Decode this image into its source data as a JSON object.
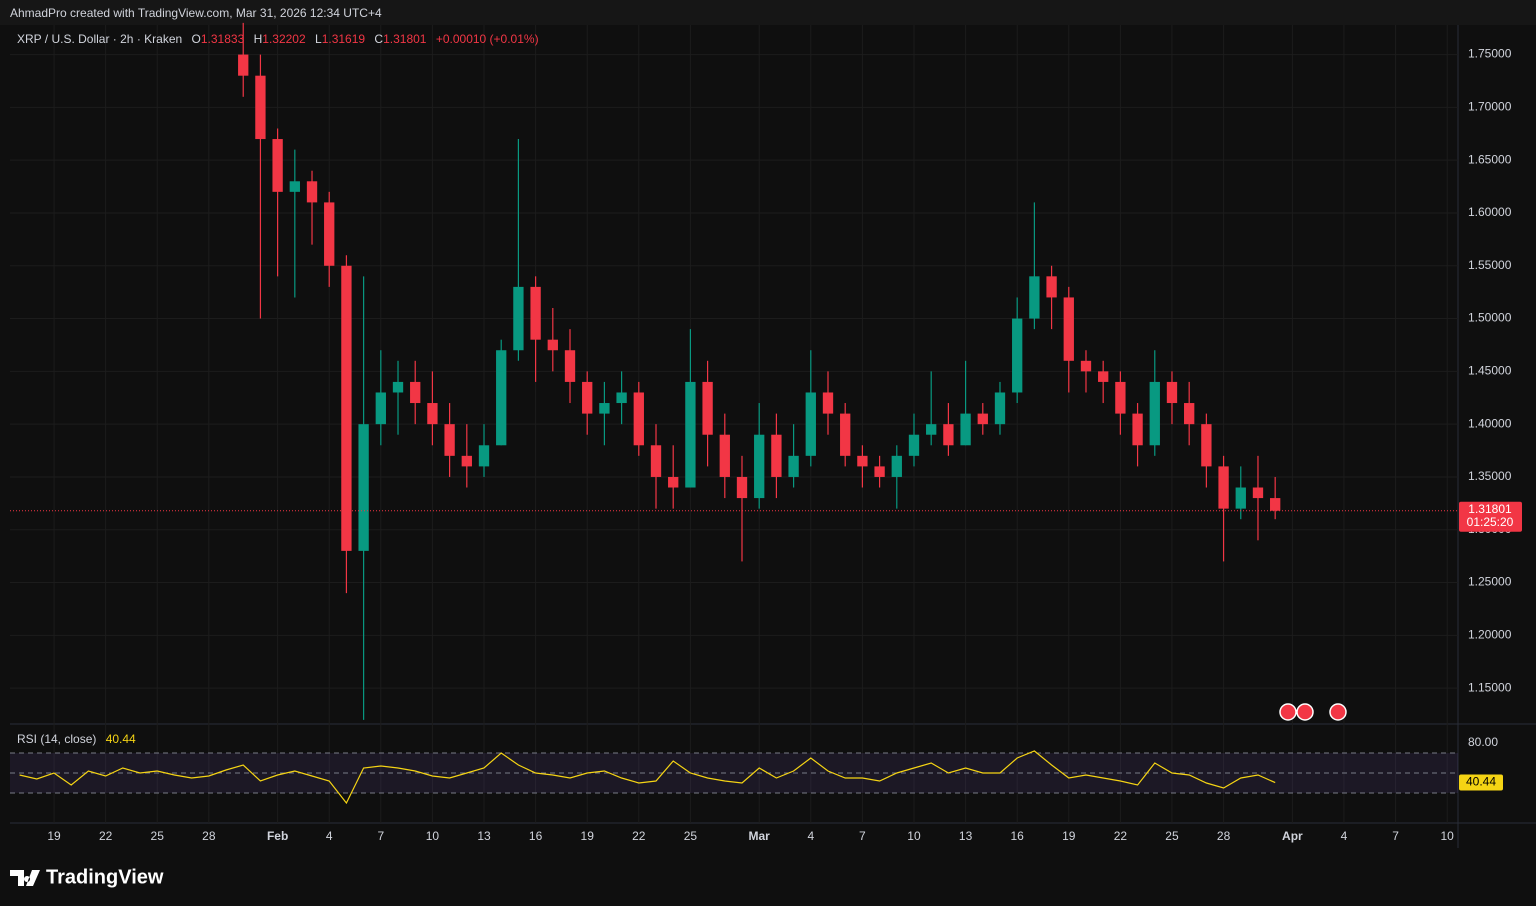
{
  "header": "AhmadPro created with TradingView.com, Mar 31, 2026 12:34 UTC+4",
  "footer": "TradingView",
  "chart_data": [
    {
      "type": "candlestick",
      "title": "XRP / U.S. Dollar · 2h · Kraken",
      "legend_labels": {
        "open": "O",
        "high": "H",
        "low": "L",
        "close": "C"
      },
      "last_bar": {
        "open": 1.31833,
        "high": 1.32202,
        "low": 1.31619,
        "close": 1.31801,
        "change": "+0.00010 (+0.01%)",
        "countdown": "01:25:20"
      },
      "up_color": "#089981",
      "down_color": "#f23645",
      "x": [
        30,
        31,
        32,
        33,
        34,
        35,
        36,
        37,
        38,
        39,
        40,
        41,
        42,
        43,
        44,
        45,
        46,
        47,
        48,
        49,
        50,
        51,
        52,
        53,
        54,
        55,
        56,
        57,
        58,
        59,
        60,
        61,
        62,
        63,
        64,
        65,
        66,
        67,
        68,
        69,
        70,
        71,
        72,
        73,
        74,
        75,
        76,
        77,
        78,
        79,
        80,
        81,
        82,
        83,
        84,
        85,
        86,
        87,
        88,
        89,
        90
      ],
      "open": [
        1.75,
        1.73,
        1.67,
        1.62,
        1.63,
        1.61,
        1.55,
        1.28,
        1.4,
        1.43,
        1.44,
        1.42,
        1.4,
        1.37,
        1.36,
        1.38,
        1.47,
        1.53,
        1.48,
        1.47,
        1.44,
        1.41,
        1.42,
        1.43,
        1.38,
        1.35,
        1.34,
        1.44,
        1.39,
        1.35,
        1.33,
        1.39,
        1.35,
        1.37,
        1.43,
        1.41,
        1.37,
        1.36,
        1.35,
        1.37,
        1.39,
        1.4,
        1.38,
        1.41,
        1.4,
        1.43,
        1.5,
        1.54,
        1.52,
        1.46,
        1.45,
        1.44,
        1.41,
        1.38,
        1.44,
        1.42,
        1.4,
        1.36,
        1.32,
        1.34,
        1.33
      ],
      "high": [
        1.78,
        1.75,
        1.68,
        1.66,
        1.64,
        1.62,
        1.56,
        1.54,
        1.47,
        1.46,
        1.46,
        1.45,
        1.42,
        1.4,
        1.4,
        1.48,
        1.67,
        1.54,
        1.51,
        1.49,
        1.45,
        1.44,
        1.45,
        1.44,
        1.4,
        1.38,
        1.49,
        1.46,
        1.41,
        1.37,
        1.42,
        1.41,
        1.4,
        1.47,
        1.45,
        1.42,
        1.38,
        1.37,
        1.38,
        1.41,
        1.45,
        1.42,
        1.46,
        1.42,
        1.44,
        1.52,
        1.61,
        1.55,
        1.53,
        1.47,
        1.46,
        1.45,
        1.42,
        1.47,
        1.45,
        1.44,
        1.41,
        1.37,
        1.36,
        1.37,
        1.35
      ],
      "low": [
        1.71,
        1.5,
        1.54,
        1.52,
        1.57,
        1.53,
        1.24,
        1.12,
        1.38,
        1.39,
        1.4,
        1.38,
        1.35,
        1.34,
        1.35,
        1.38,
        1.46,
        1.44,
        1.45,
        1.42,
        1.39,
        1.38,
        1.4,
        1.37,
        1.32,
        1.32,
        1.34,
        1.36,
        1.33,
        1.27,
        1.32,
        1.33,
        1.34,
        1.36,
        1.39,
        1.36,
        1.34,
        1.34,
        1.32,
        1.36,
        1.38,
        1.37,
        1.38,
        1.39,
        1.39,
        1.42,
        1.49,
        1.49,
        1.43,
        1.43,
        1.42,
        1.39,
        1.36,
        1.37,
        1.4,
        1.38,
        1.34,
        1.27,
        1.31,
        1.29,
        1.31
      ],
      "close": [
        1.73,
        1.67,
        1.62,
        1.63,
        1.61,
        1.55,
        1.28,
        1.4,
        1.43,
        1.44,
        1.42,
        1.4,
        1.37,
        1.36,
        1.38,
        1.47,
        1.53,
        1.48,
        1.47,
        1.44,
        1.41,
        1.42,
        1.43,
        1.38,
        1.35,
        1.34,
        1.44,
        1.39,
        1.35,
        1.33,
        1.39,
        1.35,
        1.37,
        1.43,
        1.41,
        1.37,
        1.36,
        1.35,
        1.37,
        1.39,
        1.4,
        1.38,
        1.41,
        1.4,
        1.43,
        1.5,
        1.54,
        1.52,
        1.46,
        1.45,
        1.44,
        1.41,
        1.38,
        1.44,
        1.42,
        1.4,
        1.36,
        1.32,
        1.34,
        1.33,
        1.31801
      ],
      "xlim": [
        16.44,
        100.63
      ],
      "xticks": [
        {
          "value": 19,
          "label": "19"
        },
        {
          "value": 22,
          "label": "22"
        },
        {
          "value": 25,
          "label": "25"
        },
        {
          "value": 28,
          "label": "28"
        },
        {
          "value": 32,
          "label": "Feb"
        },
        {
          "value": 35,
          "label": "4"
        },
        {
          "value": 38,
          "label": "7"
        },
        {
          "value": 41,
          "label": "10"
        },
        {
          "value": 44,
          "label": "13"
        },
        {
          "value": 47,
          "label": "16"
        },
        {
          "value": 50,
          "label": "19"
        },
        {
          "value": 53,
          "label": "22"
        },
        {
          "value": 56,
          "label": "25"
        },
        {
          "value": 60,
          "label": "Mar"
        },
        {
          "value": 63,
          "label": "4"
        },
        {
          "value": 66,
          "label": "7"
        },
        {
          "value": 69,
          "label": "10"
        },
        {
          "value": 72,
          "label": "13"
        },
        {
          "value": 75,
          "label": "16"
        },
        {
          "value": 78,
          "label": "19"
        },
        {
          "value": 81,
          "label": "22"
        },
        {
          "value": 84,
          "label": "25"
        },
        {
          "value": 87,
          "label": "28"
        },
        {
          "value": 91,
          "label": "Apr"
        },
        {
          "value": 94,
          "label": "4"
        },
        {
          "value": 97,
          "label": "7"
        },
        {
          "value": 100,
          "label": "10"
        }
      ],
      "ylim": [
        1.117,
        1.778
      ],
      "yticks": [
        {
          "value": 1.15,
          "label": "1.15000"
        },
        {
          "value": 1.2,
          "label": "1.20000"
        },
        {
          "value": 1.25,
          "label": "1.25000"
        },
        {
          "value": 1.3,
          "label": "1.30000"
        },
        {
          "value": 1.35,
          "label": "1.35000"
        },
        {
          "value": 1.4,
          "label": "1.40000"
        },
        {
          "value": 1.45,
          "label": "1.45000"
        },
        {
          "value": 1.5,
          "label": "1.50000"
        },
        {
          "value": 1.55,
          "label": "1.55000"
        },
        {
          "value": 1.6,
          "label": "1.60000"
        },
        {
          "value": 1.65,
          "label": "1.65000"
        },
        {
          "value": 1.7,
          "label": "1.70000"
        },
        {
          "value": 1.75,
          "label": "1.75000"
        }
      ],
      "grid": true
    },
    {
      "type": "line",
      "title": "RSI (14, close)",
      "color": "#f5d414",
      "x": [
        17,
        18,
        19,
        20,
        21,
        22,
        23,
        24,
        25,
        26,
        27,
        28,
        29,
        30,
        31,
        32,
        33,
        34,
        35,
        36,
        37,
        38,
        39,
        40,
        41,
        42,
        43,
        44,
        45,
        46,
        47,
        48,
        49,
        50,
        51,
        52,
        53,
        54,
        55,
        56,
        57,
        58,
        59,
        60,
        61,
        62,
        63,
        64,
        65,
        66,
        67,
        68,
        69,
        70,
        71,
        72,
        73,
        74,
        75,
        76,
        77,
        78,
        79,
        80,
        81,
        82,
        83,
        84,
        85,
        86,
        87,
        88,
        89,
        90
      ],
      "values": [
        48,
        44,
        50,
        38,
        52,
        47,
        55,
        50,
        52,
        48,
        45,
        47,
        53,
        58,
        42,
        48,
        52,
        47,
        42,
        20,
        55,
        57,
        55,
        52,
        47,
        45,
        50,
        55,
        70,
        58,
        50,
        48,
        45,
        50,
        52,
        45,
        40,
        42,
        62,
        50,
        45,
        42,
        40,
        55,
        45,
        52,
        65,
        52,
        45,
        45,
        42,
        50,
        55,
        60,
        50,
        55,
        50,
        50,
        65,
        72,
        58,
        45,
        48,
        45,
        42,
        38,
        60,
        50,
        48,
        40,
        35,
        45,
        48,
        40.44
      ],
      "xlim": [
        16.44,
        100.63
      ],
      "ylim": [
        0,
        98
      ],
      "yticks": [
        {
          "value": 80,
          "label": "80.00"
        }
      ],
      "band": [
        30,
        70
      ],
      "band_color": "#7e57c2",
      "levels": [
        70,
        50,
        30
      ]
    }
  ]
}
